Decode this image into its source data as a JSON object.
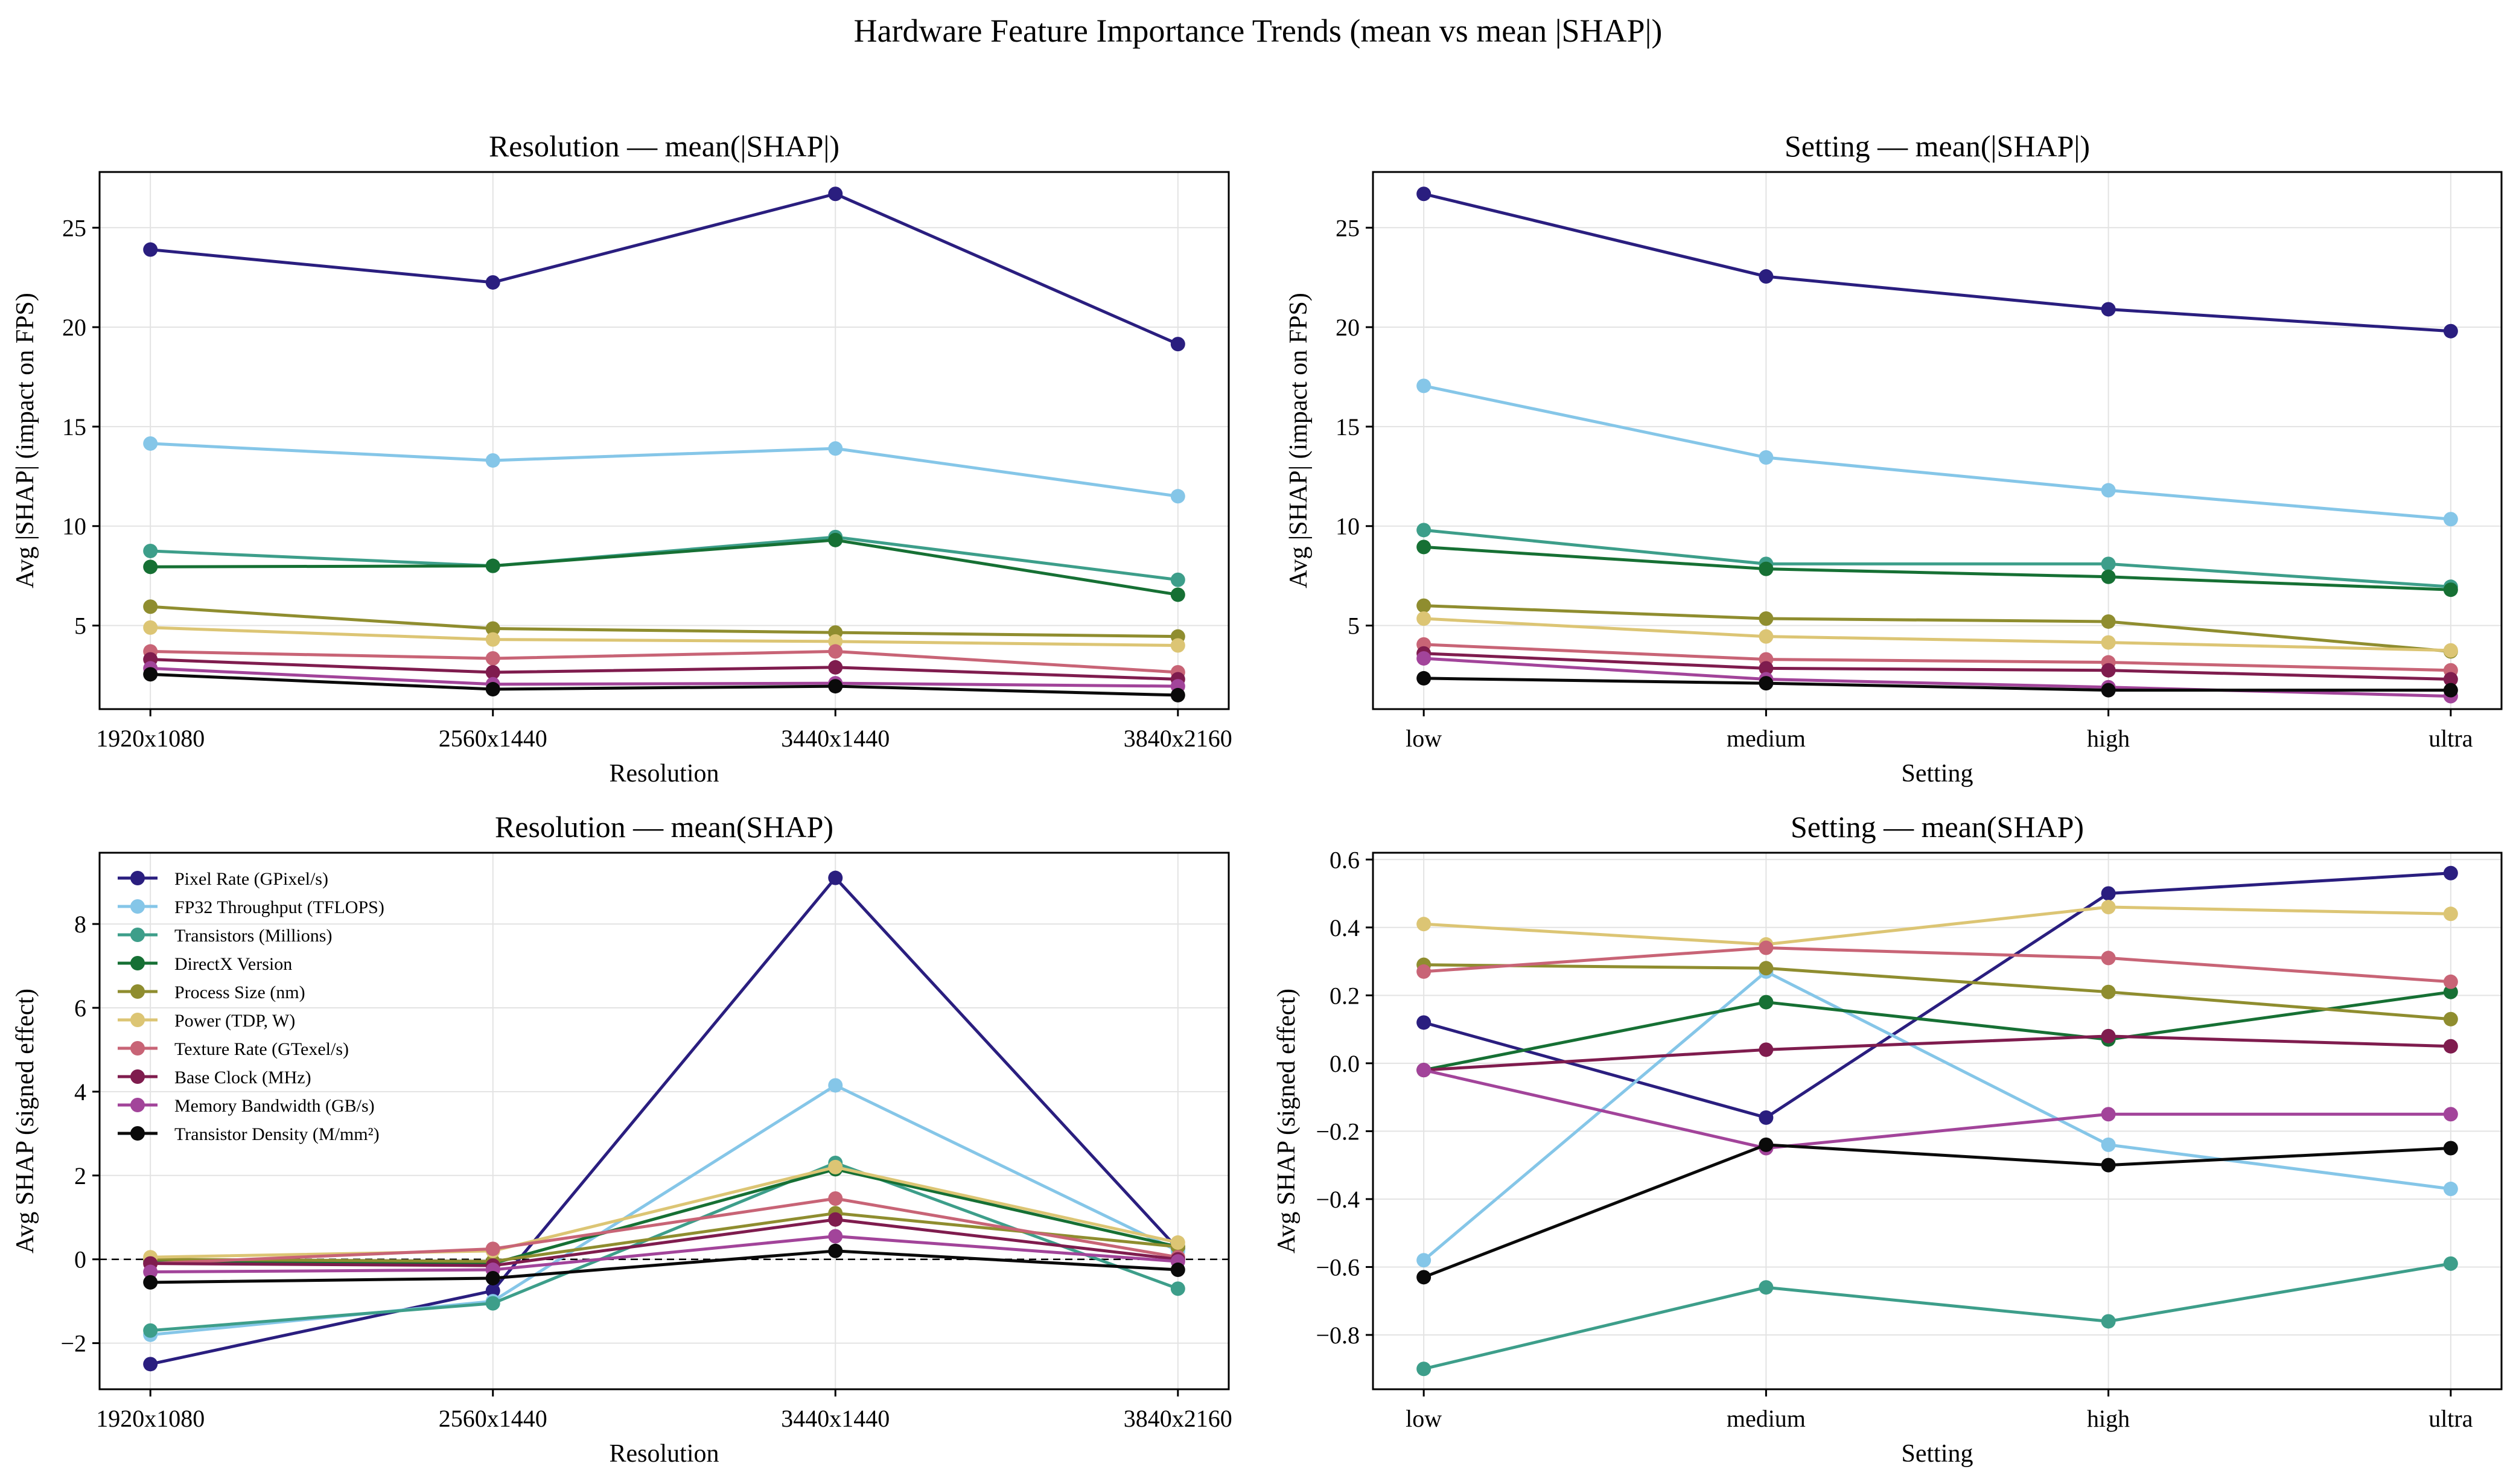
{
  "figure": {
    "title": "Hardware Feature Importance Trends (mean vs mean |SHAP|)"
  },
  "chart_data": [
    {
      "type": "line",
      "title": "Resolution — mean(|SHAP|)",
      "xlabel": "Resolution",
      "ylabel": "Avg |SHAP| (impact on FPS)",
      "categories": [
        "1920x1080",
        "2560x1440",
        "3440x1440",
        "3840x2160"
      ],
      "ylim": [
        0.8,
        27.8
      ],
      "yticks": [
        5,
        10,
        15,
        20,
        25
      ],
      "grid": true,
      "legend": null,
      "zero_line": false,
      "series": [
        {
          "name": "Pixel Rate (GPixel/s)",
          "color": "#2a1e7f",
          "values": [
            23.9,
            22.25,
            26.7,
            19.15
          ]
        },
        {
          "name": "FP32 Throughput (TFLOPS)",
          "color": "#85c6e8",
          "values": [
            14.15,
            13.3,
            13.9,
            11.5
          ]
        },
        {
          "name": "Transistors (Millions)",
          "color": "#3d9e8a",
          "values": [
            8.75,
            8.0,
            9.45,
            7.3
          ]
        },
        {
          "name": "DirectX Version",
          "color": "#167034",
          "values": [
            7.95,
            8.0,
            9.3,
            6.55
          ]
        },
        {
          "name": "Process Size (nm)",
          "color": "#8f8d2f",
          "values": [
            5.95,
            4.85,
            4.65,
            4.45
          ]
        },
        {
          "name": "Power (TDP, W)",
          "color": "#dcc574",
          "values": [
            4.9,
            4.3,
            4.2,
            4.0
          ]
        },
        {
          "name": "Texture Rate (GTexel/s)",
          "color": "#c86476",
          "values": [
            3.7,
            3.35,
            3.7,
            2.65
          ]
        },
        {
          "name": "Base Clock (MHz)",
          "color": "#7f1c4e",
          "values": [
            3.3,
            2.65,
            2.9,
            2.3
          ]
        },
        {
          "name": "Memory Bandwidth (GB/s)",
          "color": "#a2449a",
          "values": [
            2.85,
            2.05,
            2.1,
            1.95
          ]
        },
        {
          "name": "Transistor Density (M/mm²)",
          "color": "#0a0a0a",
          "values": [
            2.55,
            1.8,
            1.95,
            1.5
          ]
        }
      ]
    },
    {
      "type": "line",
      "title": "Setting — mean(|SHAP|)",
      "xlabel": "Setting",
      "ylabel": "Avg |SHAP| (impact on FPS)",
      "categories": [
        "low",
        "medium",
        "high",
        "ultra"
      ],
      "ylim": [
        0.8,
        27.8
      ],
      "yticks": [
        5,
        10,
        15,
        20,
        25
      ],
      "grid": true,
      "legend": null,
      "zero_line": false,
      "series": [
        {
          "name": "Pixel Rate (GPixel/s)",
          "color": "#2a1e7f",
          "values": [
            26.7,
            22.55,
            20.9,
            19.8
          ]
        },
        {
          "name": "FP32 Throughput (TFLOPS)",
          "color": "#85c6e8",
          "values": [
            17.05,
            13.45,
            11.8,
            10.35
          ]
        },
        {
          "name": "Transistors (Millions)",
          "color": "#3d9e8a",
          "values": [
            9.8,
            8.1,
            8.1,
            6.95
          ]
        },
        {
          "name": "DirectX Version",
          "color": "#167034",
          "values": [
            8.95,
            7.85,
            7.45,
            6.8
          ]
        },
        {
          "name": "Process Size (nm)",
          "color": "#8f8d2f",
          "values": [
            6.0,
            5.35,
            5.2,
            3.7
          ]
        },
        {
          "name": "Power (TDP, W)",
          "color": "#dcc574",
          "values": [
            5.35,
            4.45,
            4.15,
            3.75
          ]
        },
        {
          "name": "Texture Rate (GTexel/s)",
          "color": "#c86476",
          "values": [
            4.05,
            3.3,
            3.15,
            2.75
          ]
        },
        {
          "name": "Base Clock (MHz)",
          "color": "#7f1c4e",
          "values": [
            3.6,
            2.85,
            2.75,
            2.3
          ]
        },
        {
          "name": "Memory Bandwidth (GB/s)",
          "color": "#a2449a",
          "values": [
            3.35,
            2.3,
            1.9,
            1.45
          ]
        },
        {
          "name": "Transistor Density (M/mm²)",
          "color": "#0a0a0a",
          "values": [
            2.35,
            2.1,
            1.75,
            1.75
          ]
        }
      ]
    },
    {
      "type": "line",
      "title": "Resolution — mean(SHAP)",
      "xlabel": "Resolution",
      "ylabel": "Avg SHAP (signed effect)",
      "categories": [
        "1920x1080",
        "2560x1440",
        "3440x1440",
        "3840x2160"
      ],
      "ylim": [
        -3.1,
        9.7
      ],
      "yticks": [
        -2,
        0,
        2,
        4,
        6,
        8
      ],
      "grid": true,
      "legend": "upper left",
      "zero_line": true,
      "series": [
        {
          "name": "Pixel Rate (GPixel/s)",
          "color": "#2a1e7f",
          "values": [
            -2.5,
            -0.75,
            9.1,
            0.25
          ]
        },
        {
          "name": "FP32 Throughput (TFLOPS)",
          "color": "#85c6e8",
          "values": [
            -1.8,
            -1.0,
            4.15,
            0.2
          ]
        },
        {
          "name": "Transistors (Millions)",
          "color": "#3d9e8a",
          "values": [
            -1.7,
            -1.05,
            2.3,
            -0.7
          ]
        },
        {
          "name": "DirectX Version",
          "color": "#167034",
          "values": [
            -0.05,
            -0.1,
            2.15,
            0.3
          ]
        },
        {
          "name": "Process Size (nm)",
          "color": "#8f8d2f",
          "values": [
            0.0,
            -0.05,
            1.1,
            0.3
          ]
        },
        {
          "name": "Power (TDP, W)",
          "color": "#dcc574",
          "values": [
            0.05,
            0.2,
            2.2,
            0.4
          ]
        },
        {
          "name": "Texture Rate (GTexel/s)",
          "color": "#c86476",
          "values": [
            -0.1,
            0.25,
            1.45,
            0.05
          ]
        },
        {
          "name": "Base Clock (MHz)",
          "color": "#7f1c4e",
          "values": [
            -0.1,
            -0.15,
            0.95,
            0.0
          ]
        },
        {
          "name": "Memory Bandwidth (GB/s)",
          "color": "#a2449a",
          "values": [
            -0.3,
            -0.25,
            0.55,
            -0.05
          ]
        },
        {
          "name": "Transistor Density (M/mm²)",
          "color": "#0a0a0a",
          "values": [
            -0.55,
            -0.45,
            0.2,
            -0.25
          ]
        }
      ]
    },
    {
      "type": "line",
      "title": "Setting — mean(SHAP)",
      "xlabel": "Setting",
      "ylabel": "Avg SHAP (signed effect)",
      "categories": [
        "low",
        "medium",
        "high",
        "ultra"
      ],
      "ylim": [
        -0.96,
        0.62
      ],
      "yticks": [
        -0.8,
        -0.6,
        -0.4,
        -0.2,
        0.0,
        0.2,
        0.4,
        0.6
      ],
      "ytick_labels": [
        "−0.8",
        "−0.6",
        "−0.4",
        "−0.2",
        "0.0",
        "0.2",
        "0.4",
        "0.6"
      ],
      "grid": true,
      "legend": null,
      "zero_line": false,
      "series": [
        {
          "name": "Pixel Rate (GPixel/s)",
          "color": "#2a1e7f",
          "values": [
            0.12,
            -0.16,
            0.5,
            0.56
          ]
        },
        {
          "name": "FP32 Throughput (TFLOPS)",
          "color": "#85c6e8",
          "values": [
            -0.58,
            0.27,
            -0.24,
            -0.37
          ]
        },
        {
          "name": "Transistors (Millions)",
          "color": "#3d9e8a",
          "values": [
            -0.9,
            -0.66,
            -0.76,
            -0.59
          ]
        },
        {
          "name": "DirectX Version",
          "color": "#167034",
          "values": [
            -0.02,
            0.18,
            0.07,
            0.21
          ]
        },
        {
          "name": "Process Size (nm)",
          "color": "#8f8d2f",
          "values": [
            0.29,
            0.28,
            0.21,
            0.13
          ]
        },
        {
          "name": "Power (TDP, W)",
          "color": "#dcc574",
          "values": [
            0.41,
            0.35,
            0.46,
            0.44
          ]
        },
        {
          "name": "Texture Rate (GTexel/s)",
          "color": "#c86476",
          "values": [
            0.27,
            0.34,
            0.31,
            0.24
          ]
        },
        {
          "name": "Base Clock (MHz)",
          "color": "#7f1c4e",
          "values": [
            -0.02,
            0.04,
            0.08,
            0.05
          ]
        },
        {
          "name": "Memory Bandwidth (GB/s)",
          "color": "#a2449a",
          "values": [
            -0.02,
            -0.25,
            -0.15,
            -0.15
          ]
        },
        {
          "name": "Transistor Density (M/mm²)",
          "color": "#0a0a0a",
          "values": [
            -0.63,
            -0.24,
            -0.3,
            -0.25
          ]
        }
      ]
    }
  ]
}
